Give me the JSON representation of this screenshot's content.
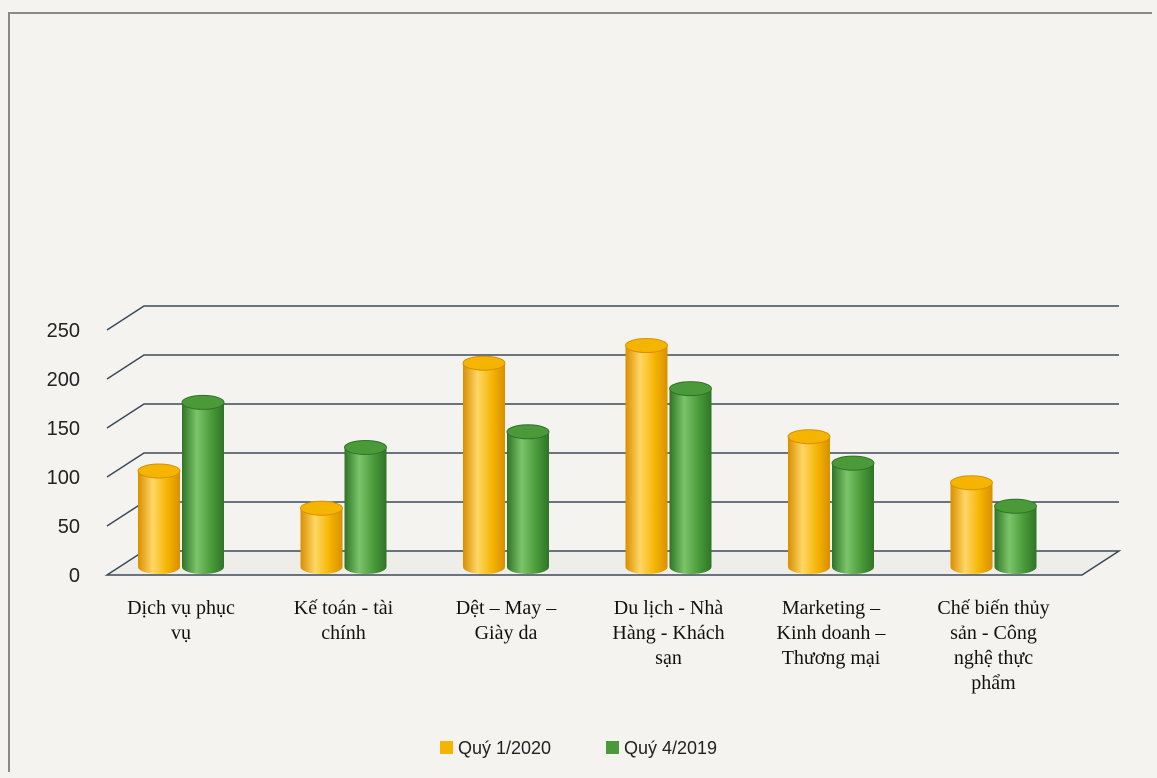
{
  "chart_data": {
    "type": "bar",
    "title": "",
    "xlabel": "",
    "ylabel": "",
    "ylim": [
      0,
      250
    ],
    "yticks": [
      "0",
      "50",
      "100",
      "150",
      "200",
      "250"
    ],
    "categories": [
      [
        "Dịch vụ phục",
        "vụ"
      ],
      [
        "Kế toán - tài",
        "chính"
      ],
      [
        "Dệt – May –",
        "Giày da"
      ],
      [
        "Du lịch - Nhà",
        "Hàng - Khách",
        "sạn"
      ],
      [
        "Marketing –",
        "Kinh doanh –",
        "Thương mại"
      ],
      [
        "Chế biến thủy",
        "sản - Công",
        "nghệ thực",
        "phẩm"
      ]
    ],
    "series": [
      {
        "name": "Quý 1/2020",
        "values": [
          100,
          62,
          210,
          228,
          135,
          88
        ]
      },
      {
        "name": "Quý 4/2019",
        "values": [
          170,
          124,
          140,
          184,
          108,
          64
        ]
      }
    ],
    "grid": true,
    "legend_position": "bottom-center",
    "colors": {
      "series1": "#f4b400",
      "series1_dark": "#d98f00",
      "series2": "#4a9a3a",
      "series2_dark": "#2f7427",
      "grid": "#3b4a5a",
      "axis_text": "#222222"
    }
  }
}
